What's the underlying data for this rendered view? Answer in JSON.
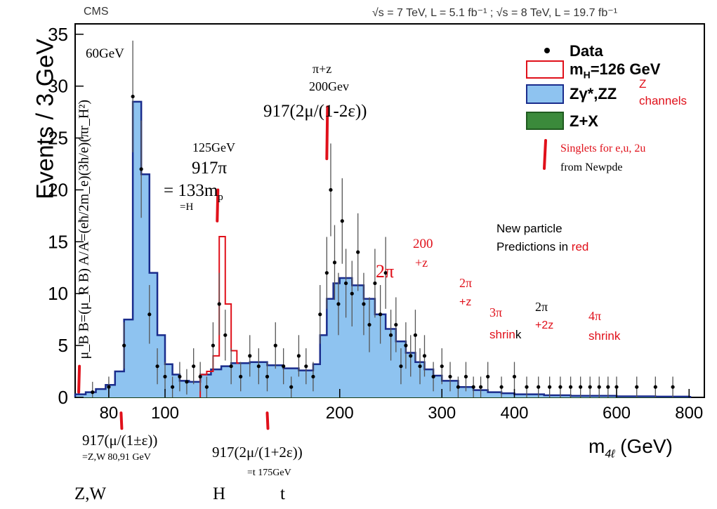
{
  "header": {
    "experiment": "CMS",
    "energy_info": "√s = 7 TeV, L = 5.1 fb⁻¹ ; √s = 8 TeV, L = 19.7 fb⁻¹"
  },
  "chart_data": {
    "type": "bar",
    "ylabel": "Events / 3 GeV",
    "xlabel": "m4ℓ (GeV)",
    "xscale": "log",
    "xlim": [
      70,
      850
    ],
    "ylim": [
      0,
      36
    ],
    "x_ticks": [
      80,
      100,
      200,
      300,
      400,
      600,
      800
    ],
    "y_ticks": [
      0,
      5,
      10,
      15,
      20,
      25,
      30,
      35
    ],
    "legend": {
      "placement": "top-right",
      "entries": [
        {
          "label": "Data",
          "marker": "dot"
        },
        {
          "label": "mH=126 GeV",
          "style": "red-outline"
        },
        {
          "label": "Zγ*,ZZ",
          "style": "blue-fill"
        },
        {
          "label": "Z+X",
          "style": "green-fill"
        }
      ]
    },
    "series": [
      {
        "name": "Zγ*,ZZ",
        "x": [
          70,
          73,
          76,
          79,
          82,
          85,
          88,
          91,
          94,
          97,
          100,
          103,
          106,
          110,
          115,
          120,
          125,
          130,
          140,
          150,
          160,
          170,
          180,
          185,
          190,
          195,
          200,
          210,
          220,
          230,
          240,
          250,
          260,
          270,
          280,
          290,
          300,
          320,
          340,
          360,
          380,
          400,
          450,
          500,
          600,
          700,
          800
        ],
        "y": [
          0.3,
          0.5,
          0.8,
          1.2,
          2.5,
          7.5,
          28.5,
          21.5,
          12.0,
          6.0,
          3.2,
          2.2,
          1.6,
          1.5,
          2.2,
          2.7,
          3.0,
          3.3,
          3.4,
          3.1,
          2.8,
          2.6,
          3.2,
          6.0,
          9.5,
          11.0,
          11.5,
          10.8,
          9.5,
          8.0,
          6.6,
          5.4,
          4.3,
          3.4,
          2.7,
          2.1,
          1.6,
          1.0,
          0.7,
          0.5,
          0.4,
          0.3,
          0.2,
          0.15,
          0.1,
          0.08,
          0.05
        ]
      },
      {
        "name": "mH=126 GeV",
        "x": [
          115,
          118,
          121,
          124,
          127,
          130,
          133
        ],
        "y": [
          2.2,
          2.5,
          4.0,
          15.5,
          9.0,
          4.5,
          3.3
        ]
      },
      {
        "name": "Z+X",
        "x": [
          70,
          90,
          110,
          130,
          150,
          170,
          190,
          210,
          230,
          250,
          270,
          300,
          350,
          400,
          500,
          800
        ],
        "y": [
          0.2,
          0.4,
          0.6,
          0.8,
          0.9,
          0.95,
          0.95,
          0.9,
          0.8,
          0.7,
          0.55,
          0.4,
          0.25,
          0.15,
          0.08,
          0.03
        ]
      },
      {
        "name": "Data",
        "x": [
          75,
          80,
          85,
          88,
          91,
          94,
          97,
          100,
          103,
          106,
          109,
          112,
          115,
          118,
          121,
          124,
          127,
          130,
          135,
          140,
          145,
          150,
          155,
          160,
          165,
          170,
          175,
          180,
          185,
          190,
          193,
          196,
          199,
          202,
          205,
          210,
          215,
          220,
          225,
          230,
          235,
          240,
          245,
          250,
          255,
          260,
          265,
          270,
          275,
          280,
          290,
          300,
          310,
          320,
          330,
          340,
          350,
          360,
          380,
          400,
          420,
          440,
          460,
          480,
          500,
          520,
          540,
          560,
          580,
          600,
          650,
          700,
          750
        ],
        "y": [
          0.5,
          1.0,
          5.0,
          29.0,
          22.0,
          8.0,
          3.0,
          2.0,
          1.0,
          2.0,
          1.5,
          3.0,
          2.0,
          1.0,
          5.0,
          9.0,
          6.0,
          3.0,
          2.0,
          4.0,
          3.0,
          2.0,
          5.0,
          3.0,
          1.0,
          4.0,
          3.0,
          2.0,
          8.0,
          12.0,
          20.0,
          13.0,
          9.0,
          17.0,
          11.0,
          10.0,
          14.0,
          9.0,
          7.0,
          11.0,
          8.0,
          12.0,
          6.0,
          7.0,
          3.0,
          5.0,
          4.0,
          6.0,
          3.0,
          4.0,
          2.0,
          3.0,
          2.0,
          1.0,
          2.0,
          1.0,
          1.0,
          2.0,
          1.0,
          2.0,
          1.0,
          1.0,
          1.0,
          1.0,
          1.0,
          1.0,
          1.0,
          1.0,
          1.0,
          1.0,
          1.0,
          1.0,
          1.0
        ]
      }
    ],
    "singlet_marks_x": [
      71,
      84,
      123,
      190,
      150
    ]
  },
  "annotations": {
    "mu_formula": "μ_B B=(μ_R B) A/A=(eħ/2m_e)(3h/e)(πr_H²)",
    "sixty_gev": "60GeV",
    "pi_z": "π+z",
    "two_hundred_gev": "200Gev",
    "formula_917_2mu": "917(2μ/(1-2ε))",
    "one_25_gev": "125GeV",
    "nine17_pi": "917π",
    "eq_133mp": "= 133m",
    "eq_133mp_sub": "p",
    "eq_h": "=H",
    "z_channels_1": "Z",
    "z_channels_2": "channels",
    "singlets_1": "Singlets for e,u, 2u",
    "singlets_2": "from Newpde",
    "new_particle_1": "New particle",
    "new_particle_2a": "Predictions in ",
    "new_particle_2b": "red",
    "two_hundred": "200",
    "plus_z": "+z",
    "two_pi": "2π",
    "two_pi_b": "2π",
    "plus_z_b": "+z",
    "three_pi": "3π",
    "shrin": "shrin",
    "k": "k",
    "two_pi_c": "2π",
    "plus_2z": "+2z",
    "four_pi": "4π",
    "shrink": "shrink",
    "formula_mu_1pm": "917(μ/(1±ε))",
    "eq_zw": "=Z,W  80,91 GeV",
    "formula_917_plus": "917(2μ/(1+2ε))",
    "eq_t": "=t   175GeV",
    "bottom_zw": "Z,W",
    "bottom_h": "H",
    "bottom_t": "t"
  },
  "colors": {
    "blue_fill": "#8ec3f0",
    "blue_line": "#1a2c8c",
    "red": "#e0101a",
    "green_fill": "#3b8a3b",
    "green_line": "#1f5a1f",
    "error_bar": "#555555"
  }
}
